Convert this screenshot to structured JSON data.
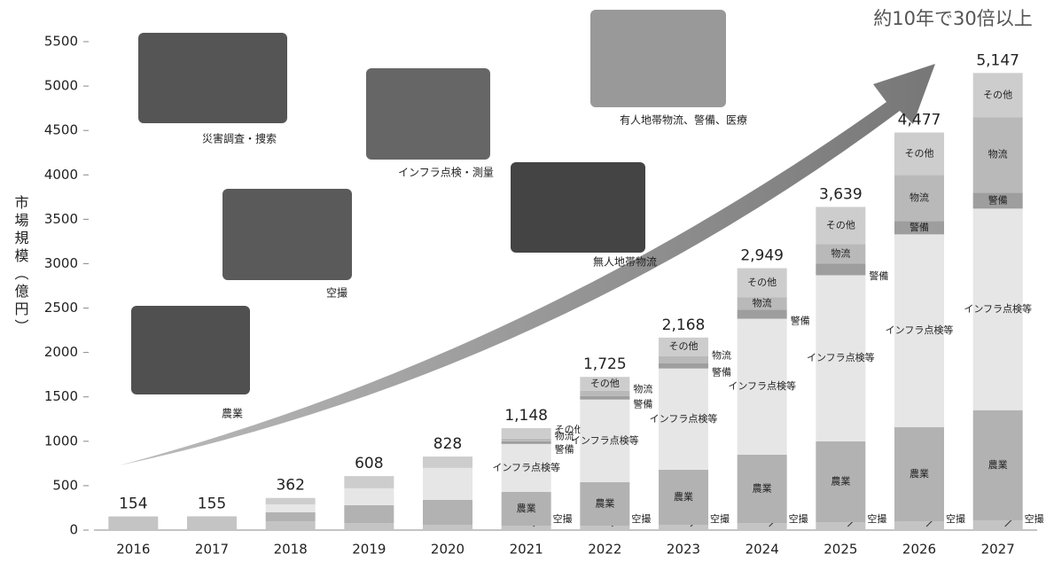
{
  "chart_data": {
    "type": "stacked_bar",
    "y_label": "市場規模（億円）",
    "annotation": "約10年で30倍以上",
    "photo_captions": [
      "災害調査・捜索",
      "インフラ点検・測量",
      "有人地帯物流、警備、医療",
      "空撮",
      "無人地帯物流",
      "農業"
    ],
    "categories": [
      "2016",
      "2017",
      "2018",
      "2019",
      "2020",
      "2021",
      "2022",
      "2023",
      "2024",
      "2025",
      "2026",
      "2027"
    ],
    "series": [
      {
        "name": "空撮",
        "color": "#c4c4c4",
        "values": [
          154,
          155,
          100,
          80,
          60,
          50,
          50,
          60,
          80,
          90,
          100,
          110
        ]
      },
      {
        "name": "農業",
        "color": "#b2b2b2",
        "values": [
          0,
          0,
          100,
          200,
          280,
          380,
          490,
          620,
          770,
          910,
          1060,
          1240
        ]
      },
      {
        "name": "インフラ点検等",
        "color": "#e6e6e6",
        "values": [
          0,
          0,
          90,
          190,
          360,
          540,
          930,
          1140,
          1530,
          1870,
          2170,
          2270
        ]
      },
      {
        "name": "警備",
        "color": "#9e9e9e",
        "values": [
          0,
          0,
          0,
          0,
          0,
          30,
          40,
          60,
          100,
          130,
          150,
          180
        ]
      },
      {
        "name": "物流",
        "color": "#b9b9b9",
        "values": [
          0,
          0,
          0,
          0,
          0,
          30,
          60,
          80,
          140,
          220,
          520,
          850
        ]
      },
      {
        "name": "その他",
        "color": "#cdcdcd",
        "values": [
          0,
          0,
          72,
          138,
          128,
          118,
          155,
          208,
          329,
          419,
          477,
          497
        ]
      }
    ],
    "totals": {
      "values": [
        154,
        155,
        362,
        608,
        828,
        1148,
        1725,
        2168,
        2949,
        3639,
        4477,
        5147
      ],
      "value_labels": [
        "154",
        "155",
        "362",
        "608",
        "828",
        "1,148",
        "1,725",
        "2,168",
        "2,949",
        "3,639",
        "4,477",
        "5,147"
      ]
    },
    "ylim": [
      0,
      5500
    ],
    "yticks": [
      0,
      500,
      1000,
      1500,
      2000,
      2500,
      3000,
      3500,
      4000,
      4500,
      5000,
      5500
    ]
  }
}
